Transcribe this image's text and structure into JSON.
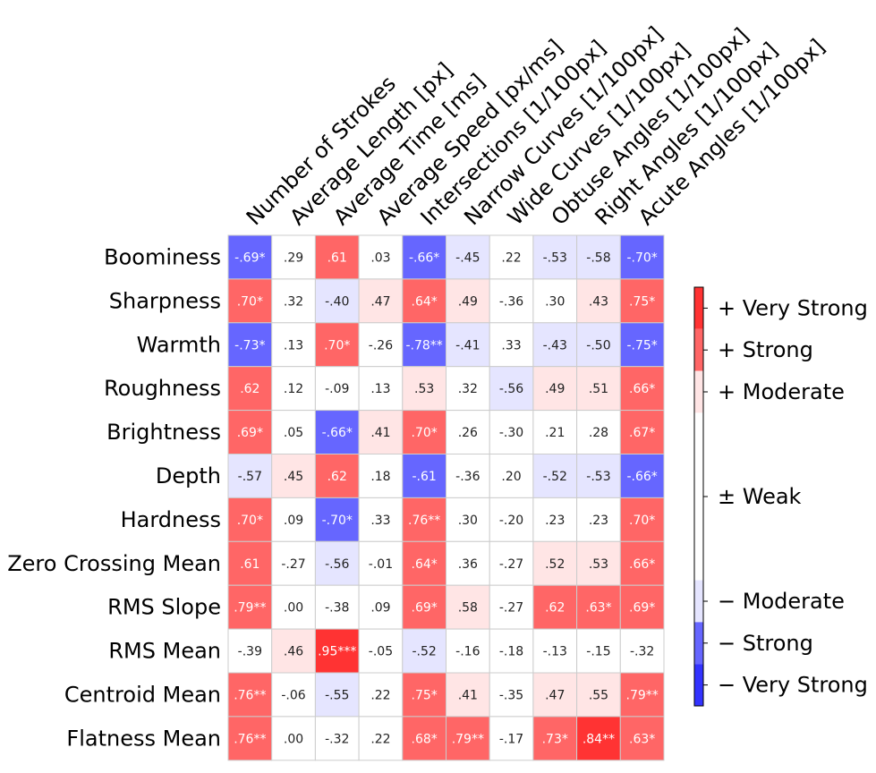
{
  "chart_data": {
    "type": "heatmap",
    "rows": [
      "Boominess",
      "Sharpness",
      "Warmth",
      "Roughness",
      "Brightness",
      "Depth",
      "Hardness",
      "Zero Crossing Mean",
      "RMS Slope",
      "RMS Mean",
      "Centroid Mean",
      "Flatness Mean"
    ],
    "columns": [
      "Number of Strokes",
      "Average Length [px]",
      "Average Time [ms]",
      "Average Speed [px/ms]",
      "Intersections [1/100px]",
      "Narrow Curves [1/100px]",
      "Wide Curves [1/100px]",
      "Obtuse Angles [1/100px]",
      "Right Angles [1/100px]",
      "Acute Angles [1/100px]"
    ],
    "labels": [
      [
        "-.69*",
        ".29",
        ".61",
        ".03",
        "-.66*",
        "-.45",
        ".22",
        "-.53",
        "-.58",
        "-.70*"
      ],
      [
        ".70*",
        ".32",
        "-.40",
        ".47",
        ".64*",
        ".49",
        "-.36",
        ".30",
        ".43",
        ".75*"
      ],
      [
        "-.73*",
        ".13",
        ".70*",
        "-.26",
        "-.78**",
        "-.41",
        ".33",
        "-.43",
        "-.50",
        "-.75*"
      ],
      [
        ".62",
        ".12",
        "-.09",
        ".13",
        ".53",
        ".32",
        "-.56",
        ".49",
        ".51",
        ".66*"
      ],
      [
        ".69*",
        ".05",
        "-.66*",
        ".41",
        ".70*",
        ".26",
        "-.30",
        ".21",
        ".28",
        ".67*"
      ],
      [
        "-.57",
        ".45",
        ".62",
        ".18",
        "-.61",
        "-.36",
        ".20",
        "-.52",
        "-.53",
        "-.66*"
      ],
      [
        ".70*",
        ".09",
        "-.70*",
        ".33",
        ".76**",
        ".30",
        "-.20",
        ".23",
        ".23",
        ".70*"
      ],
      [
        ".61",
        "-.27",
        "-.56",
        "-.01",
        ".64*",
        ".36",
        "-.27",
        ".52",
        ".53",
        ".66*"
      ],
      [
        ".79**",
        ".00",
        "-.38",
        ".09",
        ".69*",
        ".58",
        "-.27",
        ".62",
        ".63*",
        ".69*"
      ],
      [
        "-.39",
        ".46",
        ".95***",
        "-.05",
        "-.52",
        "-.16",
        "-.18",
        "-.13",
        "-.15",
        "-.32"
      ],
      [
        ".76**",
        "-.06",
        "-.55",
        ".22",
        ".75*",
        ".41",
        "-.35",
        ".47",
        ".55",
        ".79**"
      ],
      [
        ".76**",
        ".00",
        "-.32",
        ".22",
        ".68*",
        ".79**",
        "-.17",
        ".73*",
        ".84**",
        ".63*"
      ]
    ],
    "values": [
      [
        -0.69,
        0.29,
        0.61,
        0.03,
        -0.66,
        -0.45,
        0.22,
        -0.53,
        -0.58,
        -0.7
      ],
      [
        0.7,
        0.32,
        -0.4,
        0.47,
        0.64,
        0.49,
        -0.36,
        0.3,
        0.43,
        0.75
      ],
      [
        -0.73,
        0.13,
        0.7,
        -0.26,
        -0.78,
        -0.41,
        0.33,
        -0.43,
        -0.5,
        -0.75
      ],
      [
        0.62,
        0.12,
        -0.09,
        0.13,
        0.53,
        0.32,
        -0.56,
        0.49,
        0.51,
        0.66
      ],
      [
        0.69,
        0.05,
        -0.66,
        0.41,
        0.7,
        0.26,
        -0.3,
        0.21,
        0.28,
        0.67
      ],
      [
        -0.57,
        0.45,
        0.62,
        0.18,
        -0.61,
        -0.36,
        0.2,
        -0.52,
        -0.53,
        -0.66
      ],
      [
        0.7,
        0.09,
        -0.7,
        0.33,
        0.76,
        0.3,
        -0.2,
        0.23,
        0.23,
        0.7
      ],
      [
        0.61,
        -0.27,
        -0.56,
        -0.01,
        0.64,
        0.36,
        -0.27,
        0.52,
        0.53,
        0.66
      ],
      [
        0.79,
        0.0,
        -0.38,
        0.09,
        0.69,
        0.58,
        -0.27,
        0.62,
        0.63,
        0.69
      ],
      [
        -0.39,
        0.46,
        0.95,
        -0.05,
        -0.52,
        -0.16,
        -0.18,
        -0.13,
        -0.15,
        -0.32
      ],
      [
        0.76,
        -0.06,
        -0.55,
        0.22,
        0.75,
        0.41,
        -0.35,
        0.47,
        0.55,
        0.79
      ],
      [
        0.76,
        0.0,
        -0.32,
        0.22,
        0.68,
        0.79,
        -0.17,
        0.73,
        0.84,
        0.63
      ]
    ],
    "colorbar": {
      "labels": [
        "+ Very Strong",
        "+ Strong",
        "+ Moderate",
        "± Weak",
        "− Moderate",
        "− Strong",
        "− Very Strong"
      ],
      "bins": [
        [
          0.8,
          1.0
        ],
        [
          0.6,
          0.8
        ],
        [
          0.4,
          0.6
        ],
        [
          -0.4,
          0.4
        ],
        [
          -0.6,
          -0.4
        ],
        [
          -0.8,
          -0.6
        ],
        [
          -1.0,
          -0.8
        ]
      ],
      "colors": [
        "#ff3333",
        "#ff6666",
        "#ffe5e5",
        "#ffffff",
        "#e5e5ff",
        "#6666ff",
        "#3333ff"
      ]
    }
  }
}
